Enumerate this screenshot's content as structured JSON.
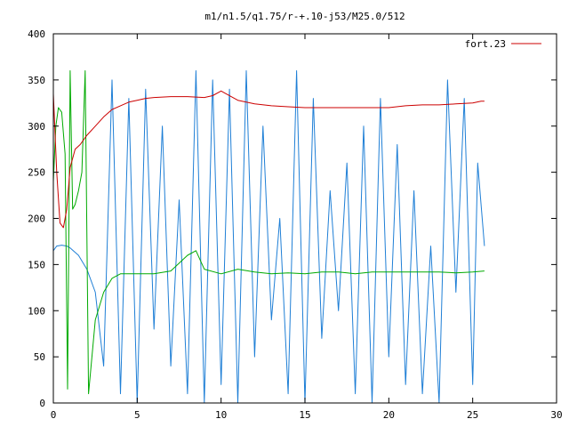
{
  "chart_data": {
    "type": "line",
    "title": "m1/n1.5/q1.75/r-+.10-j53/M25.0/512",
    "xlabel": "",
    "ylabel": "",
    "xlim": [
      0,
      30
    ],
    "ylim": [
      0,
      400
    ],
    "x_ticks": [
      0,
      5,
      10,
      15,
      20,
      25,
      30
    ],
    "y_ticks": [
      0,
      50,
      100,
      150,
      200,
      250,
      300,
      350,
      400
    ],
    "grid": false,
    "legend_position": "top-right",
    "series": [
      {
        "name": "fort.23",
        "color": "#cc0000",
        "x": [
          0,
          0.2,
          0.4,
          0.6,
          0.8,
          1.0,
          1.3,
          1.6,
          2.0,
          2.5,
          3.0,
          3.5,
          4.0,
          4.5,
          5.0,
          5.5,
          6.0,
          7.0,
          8.0,
          9.0,
          9.5,
          10.0,
          10.3,
          11.0,
          12.0,
          13.0,
          14.0,
          15.0,
          16.0,
          17.0,
          18.0,
          19.0,
          20.0,
          21.0,
          22.0,
          23.0,
          24.0,
          25.0,
          25.5,
          25.7
        ],
        "values": [
          335,
          250,
          195,
          190,
          210,
          255,
          275,
          280,
          290,
          300,
          310,
          318,
          322,
          326,
          328,
          330,
          331,
          332,
          332,
          331,
          333,
          338,
          335,
          328,
          324,
          322,
          321,
          320,
          320,
          320,
          320,
          320,
          320,
          322,
          323,
          323,
          324,
          325,
          327,
          327
        ]
      },
      {
        "name": "",
        "color": "#00aa00",
        "x": [
          0,
          0.15,
          0.3,
          0.5,
          0.7,
          0.85,
          1.0,
          1.15,
          1.3,
          1.5,
          1.7,
          1.9,
          2.1,
          2.5,
          3.0,
          3.5,
          4.0,
          5.0,
          6.0,
          7.0,
          8.0,
          8.5,
          9.0,
          10.0,
          11.0,
          12.0,
          13.0,
          14.0,
          15.0,
          16.0,
          17.0,
          18.0,
          19.0,
          20.0,
          21.0,
          22.0,
          23.0,
          24.0,
          25.0,
          25.7
        ],
        "values": [
          240,
          300,
          320,
          315,
          270,
          15,
          360,
          210,
          215,
          230,
          250,
          360,
          10,
          90,
          120,
          135,
          140,
          140,
          140,
          143,
          160,
          165,
          145,
          140,
          145,
          142,
          140,
          141,
          140,
          142,
          142,
          140,
          142,
          142,
          142,
          142,
          142,
          141,
          142,
          143
        ]
      },
      {
        "name": "",
        "color": "#1f7fd6",
        "x": [
          0,
          0.2,
          0.5,
          0.8,
          1.0,
          1.5,
          2.0,
          2.5,
          3.0,
          3.5,
          4.0,
          4.5,
          5.0,
          5.5,
          6.0,
          6.5,
          7.0,
          7.5,
          8.0,
          8.5,
          9.0,
          9.5,
          10.0,
          10.5,
          11.0,
          11.5,
          12.0,
          12.5,
          13.0,
          13.5,
          14.0,
          14.5,
          15.0,
          15.5,
          16.0,
          16.5,
          17.0,
          17.5,
          18.0,
          18.5,
          19.0,
          19.5,
          20.0,
          20.5,
          21.0,
          21.5,
          22.0,
          22.5,
          23.0,
          23.5,
          24.0,
          24.5,
          25.0,
          25.3,
          25.7
        ],
        "values": [
          165,
          170,
          171,
          170,
          168,
          160,
          145,
          120,
          40,
          350,
          10,
          330,
          0,
          340,
          80,
          300,
          40,
          220,
          10,
          360,
          0,
          350,
          20,
          340,
          0,
          360,
          50,
          300,
          90,
          200,
          10,
          360,
          0,
          330,
          70,
          230,
          100,
          260,
          10,
          300,
          0,
          330,
          50,
          280,
          20,
          230,
          10,
          170,
          0,
          350,
          120,
          330,
          20,
          260,
          170
        ]
      }
    ]
  }
}
